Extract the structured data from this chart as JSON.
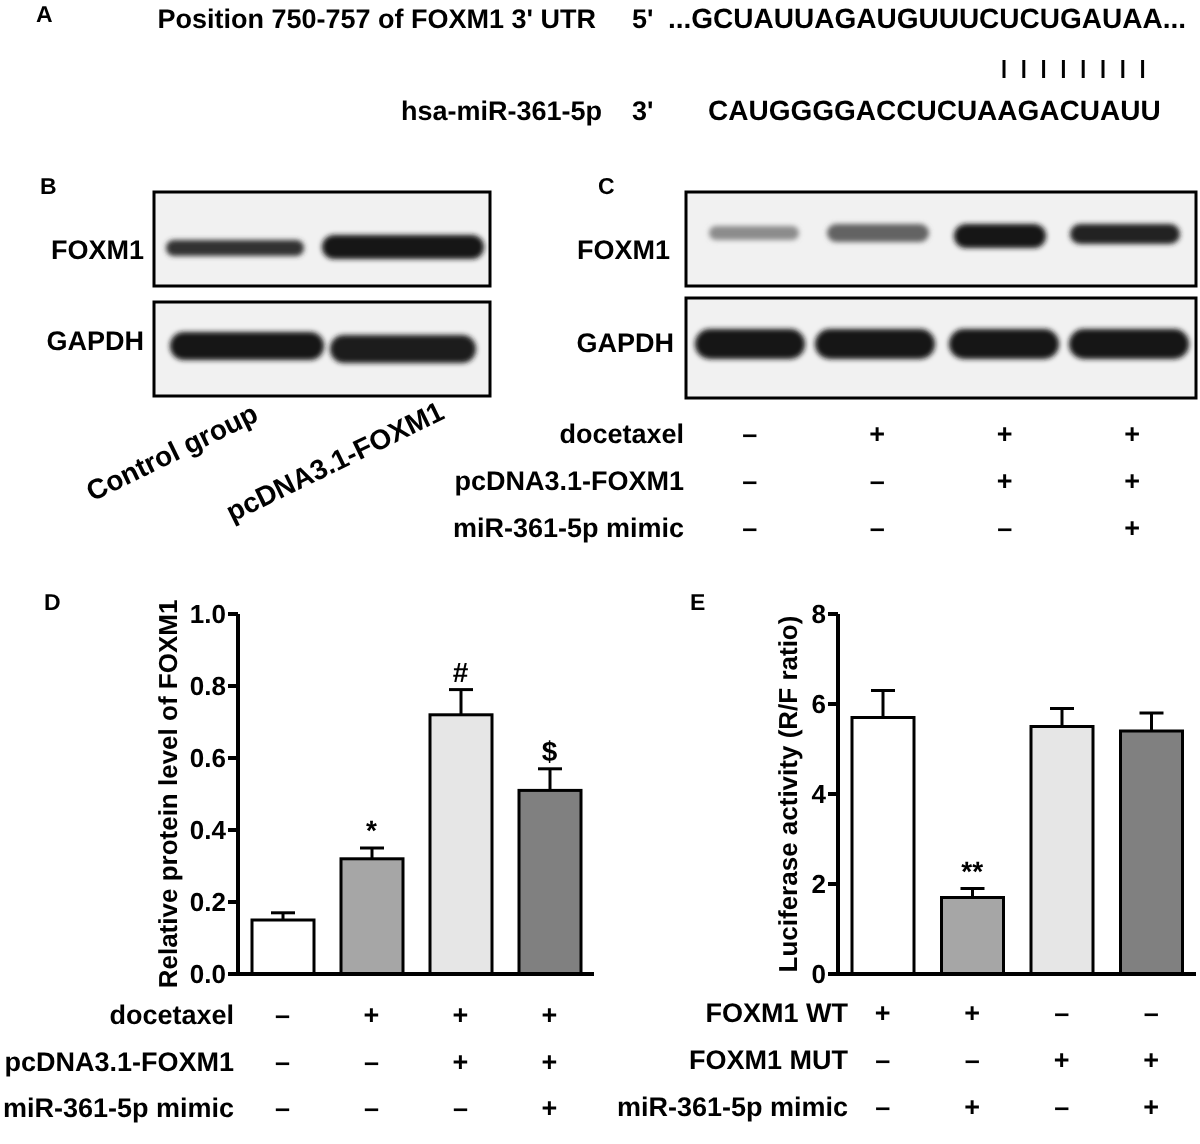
{
  "chart_data": [
    {
      "type": "other",
      "title": "A",
      "annotations": [
        "Position 750-757 of FOXM1 3' UTR",
        "5'",
        "...GCUAUUAGAUGUUUCUCUGAUAA...",
        "hsa-miR-361-5p",
        "3'",
        "CAUGGGGACCUCUAAGACUAUU"
      ]
    },
    {
      "type": "other",
      "title": "B",
      "annotations": [
        "FOXM1",
        "GAPDH",
        "Control group",
        "pcDNA3.1-FOXM1"
      ]
    },
    {
      "type": "other",
      "title": "C",
      "annotations": [
        "FOXM1",
        "GAPDH",
        "docetaxel",
        "–",
        "+",
        "+",
        "+",
        "pcDNA3.1-FOXM1",
        "–",
        "–",
        "+",
        "+",
        "miR-361-5p mimic",
        "–",
        "–",
        "–",
        "+"
      ]
    },
    {
      "type": "bar",
      "title": "D",
      "ylabel": "Relative protein level of FOXM1",
      "categories": [
        null,
        null,
        null,
        null
      ],
      "values": [
        0.15,
        0.32,
        0.72,
        0.51
      ],
      "errors": [
        0.02,
        0.03,
        0.07,
        0.06
      ],
      "value_labels": [
        null,
        "*",
        "#",
        "$"
      ],
      "colors": [
        "#ffffff",
        "#a6a6a6",
        "#e6e6e6",
        "#808080"
      ],
      "ylim": [
        0,
        1
      ],
      "yticks": [
        {
          "value": 0,
          "label": "0.0"
        },
        0.2,
        0.4,
        0.6,
        0.8,
        {
          "value": 1,
          "label": "1.0"
        }
      ],
      "tick_labels": "y",
      "annotations": [
        "docetaxel",
        "–",
        "+",
        "+",
        "+",
        "pcDNA3.1-FOXM1",
        "–",
        "–",
        "+",
        "+",
        "miR-361-5p mimic",
        "–",
        "–",
        "–",
        "+"
      ]
    },
    {
      "type": "bar",
      "title": "E",
      "ylabel": "Luciferase activity (R/F ratio)",
      "categories": [
        null,
        null,
        null,
        null
      ],
      "values": [
        5.7,
        1.7,
        5.5,
        5.4
      ],
      "errors": [
        0.6,
        0.2,
        0.4,
        0.4
      ],
      "value_labels": [
        null,
        "**",
        null,
        null
      ],
      "colors": [
        "#ffffff",
        "#a6a6a6",
        "#e6e6e6",
        "#808080"
      ],
      "ylim": [
        0,
        8
      ],
      "yticks": [
        0,
        2,
        4,
        6,
        8
      ],
      "tick_labels": "y",
      "annotations": [
        "FOXM1 WT",
        "+",
        "+",
        "–",
        "–",
        "FOXM1 MUT",
        "–",
        "–",
        "+",
        "+",
        "miR-361-5p mimic",
        "–",
        "+",
        "–",
        "+"
      ]
    }
  ]
}
